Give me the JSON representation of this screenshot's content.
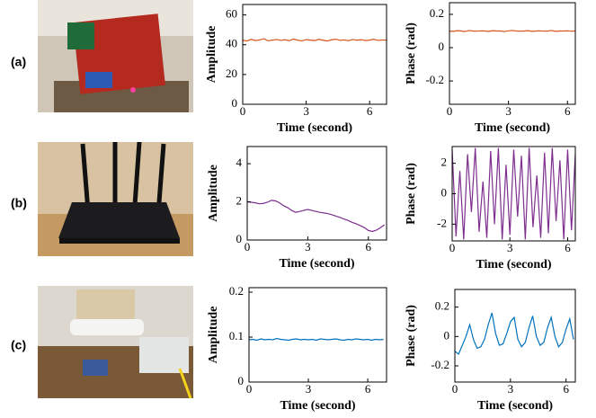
{
  "row_labels": [
    "(a)",
    "(b)",
    "(c)"
  ],
  "chart_data": [
    {
      "type": "line",
      "xlabel": "Time (second)",
      "ylabel": "Amplitude",
      "x": [
        0,
        0.2,
        0.4,
        0.6,
        0.8,
        1,
        1.2,
        1.4,
        1.6,
        1.8,
        2,
        2.2,
        2.4,
        2.6,
        2.8,
        3,
        3.2,
        3.4,
        3.6,
        3.8,
        4,
        4.2,
        4.4,
        4.6,
        4.8,
        5,
        5.2,
        5.4,
        5.6,
        5.8,
        6,
        6.2,
        6.4,
        6.6,
        6.8
      ],
      "series": [
        {
          "color": "#d95319",
          "values": [
            43,
            42.5,
            43.6,
            42.8,
            43.2,
            44,
            42.6,
            43.1,
            43.5,
            42.9,
            43.3,
            42.7,
            43.8,
            43,
            42.6,
            43.4,
            43.1,
            42.8,
            43.6,
            43,
            42.5,
            43.3,
            43.7,
            42.9,
            43.2,
            42.7,
            43.5,
            43,
            43.4,
            42.8,
            43.1,
            43.6,
            42.9,
            43.2,
            43
          ]
        }
      ],
      "xlim": [
        0,
        6.8
      ],
      "xticks": [
        0,
        3,
        6
      ],
      "ylim": [
        0,
        67
      ],
      "yticks": [
        0,
        20,
        40,
        60
      ]
    },
    {
      "type": "line",
      "xlabel": "Time (second)",
      "ylabel": "Phase (rad)",
      "x": [
        0,
        0.2,
        0.4,
        0.6,
        0.8,
        1,
        1.2,
        1.4,
        1.6,
        1.8,
        2,
        2.2,
        2.4,
        2.6,
        2.8,
        3,
        3.2,
        3.4,
        3.6,
        3.8,
        4,
        4.2,
        4.4,
        4.6,
        4.8,
        5,
        5.2,
        5.4,
        5.6,
        5.8,
        6,
        6.2,
        6.4
      ],
      "series": [
        {
          "color": "#d95319",
          "values": [
            0.1,
            0.098,
            0.102,
            0.1,
            0.097,
            0.103,
            0.1,
            0.099,
            0.101,
            0.1,
            0.098,
            0.102,
            0.1,
            0.1,
            0.097,
            0.101,
            0.103,
            0.1,
            0.099,
            0.1,
            0.102,
            0.098,
            0.1,
            0.101,
            0.099,
            0.1,
            0.103,
            0.098,
            0.1,
            0.1,
            0.101,
            0.099,
            0.1
          ]
        }
      ],
      "xlim": [
        0,
        6.4
      ],
      "xticks": [
        0,
        3,
        6
      ],
      "ylim": [
        -0.34,
        0.27
      ],
      "yticks": [
        -0.2,
        0,
        0.2
      ]
    },
    {
      "type": "line",
      "xlabel": "Time (second)",
      "ylabel": "Amplitude",
      "x": [
        0,
        0.2,
        0.4,
        0.6,
        0.8,
        1,
        1.2,
        1.4,
        1.6,
        1.8,
        2,
        2.2,
        2.4,
        2.6,
        2.8,
        3,
        3.2,
        3.4,
        3.6,
        3.8,
        4,
        4.2,
        4.4,
        4.6,
        4.8,
        5,
        5.2,
        5.4,
        5.6,
        5.8,
        6,
        6.2,
        6.4,
        6.6,
        6.8
      ],
      "series": [
        {
          "color": "#7e2f8e",
          "values": [
            2,
            1.98,
            1.95,
            1.9,
            1.92,
            1.98,
            2.08,
            2.05,
            1.95,
            1.8,
            1.7,
            1.55,
            1.45,
            1.5,
            1.55,
            1.6,
            1.55,
            1.5,
            1.45,
            1.42,
            1.38,
            1.32,
            1.25,
            1.18,
            1.1,
            1.02,
            0.92,
            0.85,
            0.75,
            0.65,
            0.5,
            0.45,
            0.52,
            0.65,
            0.8
          ]
        }
      ],
      "xlim": [
        0,
        6.9
      ],
      "xticks": [
        0,
        3,
        6
      ],
      "ylim": [
        0,
        4.9
      ],
      "yticks": [
        0,
        2,
        4
      ]
    },
    {
      "type": "line",
      "xlabel": "Time (second)",
      "ylabel": "Phase (rad)",
      "x": [
        0,
        0.2,
        0.4,
        0.6,
        0.8,
        1,
        1.2,
        1.4,
        1.6,
        1.8,
        2,
        2.2,
        2.4,
        2.6,
        2.8,
        3,
        3.2,
        3.4,
        3.6,
        3.8,
        4,
        4.2,
        4.4,
        4.6,
        4.8,
        5,
        5.2,
        5.4,
        5.6,
        5.8,
        6,
        6.2,
        6.4
      ],
      "series": [
        {
          "color": "#7e2f8e",
          "values": [
            2.9,
            -2.8,
            1.5,
            -3,
            2.6,
            -1.2,
            3,
            -2.5,
            0.8,
            -2.9,
            2.8,
            -2,
            3,
            -3,
            1.9,
            -2.7,
            2.9,
            -1.5,
            2.5,
            -3,
            3,
            -2.2,
            1.2,
            -2.9,
            2.7,
            -2.6,
            3,
            -1.8,
            2.2,
            -3,
            2.9,
            -2.4,
            2.6
          ]
        }
      ],
      "xlim": [
        0,
        6.4
      ],
      "xticks": [
        0,
        3,
        6
      ],
      "ylim": [
        -3.1,
        3.1
      ],
      "yticks": [
        -2,
        0,
        2
      ]
    },
    {
      "type": "line",
      "xlabel": "Time (second)",
      "ylabel": "Amplitude",
      "x": [
        0,
        0.2,
        0.4,
        0.6,
        0.8,
        1,
        1.2,
        1.4,
        1.6,
        1.8,
        2,
        2.2,
        2.4,
        2.6,
        2.8,
        3,
        3.2,
        3.4,
        3.6,
        3.8,
        4,
        4.2,
        4.4,
        4.6,
        4.8,
        5,
        5.2,
        5.4,
        5.6,
        5.8,
        6,
        6.2,
        6.4,
        6.6,
        6.8
      ],
      "series": [
        {
          "color": "#0072bd",
          "values": [
            0.094,
            0.095,
            0.093,
            0.096,
            0.094,
            0.095,
            0.094,
            0.097,
            0.095,
            0.094,
            0.093,
            0.095,
            0.096,
            0.094,
            0.095,
            0.094,
            0.095,
            0.093,
            0.096,
            0.095,
            0.094,
            0.095,
            0.096,
            0.094,
            0.093,
            0.095,
            0.094,
            0.096,
            0.095,
            0.094,
            0.095,
            0.093,
            0.095,
            0.094,
            0.095
          ]
        }
      ],
      "xlim": [
        0,
        6.95
      ],
      "xticks": [
        0,
        3,
        6
      ],
      "ylim": [
        0,
        0.21
      ],
      "yticks": [
        0,
        0.1,
        0.2
      ]
    },
    {
      "type": "line",
      "xlabel": "Time (second)",
      "ylabel": "Phase (rad)",
      "x": [
        0,
        0.2,
        0.4,
        0.6,
        0.8,
        1,
        1.2,
        1.4,
        1.6,
        1.8,
        2,
        2.2,
        2.4,
        2.6,
        2.8,
        3,
        3.2,
        3.4,
        3.6,
        3.8,
        4,
        4.2,
        4.4,
        4.6,
        4.8,
        5,
        5.2,
        5.4,
        5.6,
        5.8,
        6,
        6.2,
        6.4
      ],
      "series": [
        {
          "color": "#0072bd",
          "values": [
            -0.1,
            -0.12,
            -0.06,
            0,
            0.08,
            -0.02,
            -0.08,
            -0.07,
            -0.02,
            0.08,
            0.16,
            0.02,
            -0.06,
            -0.05,
            0.02,
            0.1,
            0.13,
            -0.02,
            -0.07,
            -0.04,
            0.06,
            0.14,
            0,
            -0.06,
            -0.04,
            0.06,
            0.13,
            0,
            -0.07,
            -0.04,
            0.05,
            0.12,
            -0.02
          ]
        }
      ],
      "xlim": [
        0,
        6.5
      ],
      "xticks": [
        0,
        3,
        6
      ],
      "ylim": [
        -0.31,
        0.32
      ],
      "yticks": [
        -0.2,
        0,
        0.2
      ]
    }
  ]
}
